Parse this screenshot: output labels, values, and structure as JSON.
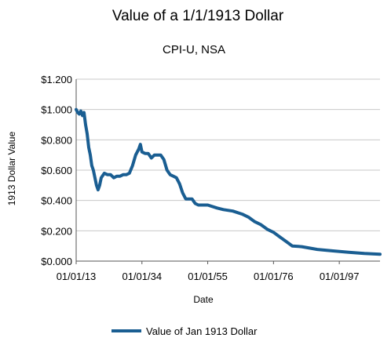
{
  "chart_data": {
    "type": "line",
    "title": "Value of a 1/1/1913 Dollar",
    "subtitle": "CPI-U, NSA",
    "xlabel": "Date",
    "ylabel": "1913 Dollar Value",
    "x_ticks": [
      "01/01/13",
      "01/01/34",
      "01/01/55",
      "01/01/76",
      "01/01/97"
    ],
    "y_ticks": [
      "$0.000",
      "$0.200",
      "$0.400",
      "$0.600",
      "$0.800",
      "$1.000",
      "$1.200"
    ],
    "ylim": [
      0,
      1.2
    ],
    "xlim": [
      1913,
      2010
    ],
    "grid": "horizontal",
    "legend": "bottom",
    "series": [
      {
        "name": "Value of Jan 1913 Dollar",
        "color": "#1a5e92",
        "x": [
          1913,
          1913.5,
          1914,
          1914.5,
          1915,
          1915.5,
          1916,
          1916.5,
          1917,
          1917.5,
          1918,
          1918.5,
          1919,
          1919.5,
          1920,
          1920.5,
          1921,
          1922,
          1923,
          1924,
          1925,
          1926,
          1927,
          1928,
          1929,
          1930,
          1931,
          1932,
          1933,
          1933.5,
          1934,
          1935,
          1936,
          1937,
          1938,
          1939,
          1940,
          1941,
          1942,
          1943,
          1944,
          1945,
          1946,
          1947,
          1948,
          1949,
          1950,
          1951,
          1952,
          1953,
          1955,
          1958,
          1960,
          1963,
          1966,
          1968,
          1970,
          1972,
          1974,
          1976,
          1978,
          1980,
          1982,
          1985,
          1990,
          1995,
          2000,
          2005,
          2010
        ],
        "y": [
          1.0,
          0.98,
          0.97,
          0.99,
          0.96,
          0.98,
          0.9,
          0.84,
          0.75,
          0.7,
          0.63,
          0.6,
          0.55,
          0.5,
          0.47,
          0.5,
          0.55,
          0.58,
          0.57,
          0.57,
          0.55,
          0.56,
          0.56,
          0.57,
          0.57,
          0.58,
          0.63,
          0.7,
          0.74,
          0.77,
          0.72,
          0.71,
          0.71,
          0.68,
          0.7,
          0.7,
          0.7,
          0.67,
          0.6,
          0.57,
          0.56,
          0.55,
          0.51,
          0.45,
          0.41,
          0.41,
          0.41,
          0.38,
          0.37,
          0.37,
          0.37,
          0.35,
          0.34,
          0.33,
          0.31,
          0.29,
          0.26,
          0.24,
          0.21,
          0.19,
          0.16,
          0.13,
          0.1,
          0.095,
          0.077,
          0.067,
          0.058,
          0.05,
          0.045
        ]
      }
    ]
  }
}
